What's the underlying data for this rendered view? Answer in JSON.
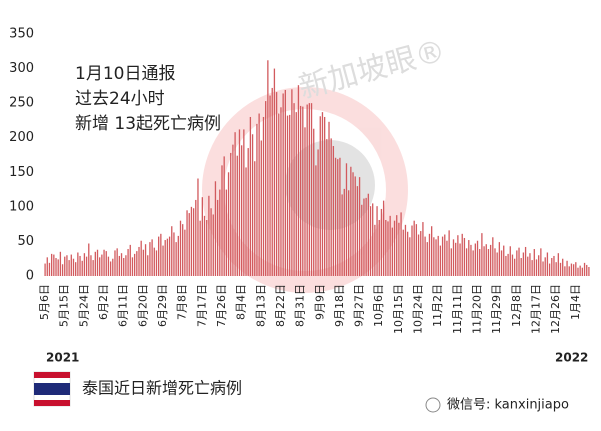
{
  "watermark": "新加坡眼®",
  "wechat": "微信号: kanxinjiapo",
  "chart_data": {
    "type": "bar",
    "color": "#d25a5e",
    "annotations": [
      "1月10日通报",
      "过去24小时",
      "新增 13起死亡病例"
    ],
    "year_labels": [
      "2021",
      "2022"
    ],
    "legend": "泰国近日新增死亡病例",
    "ylim": [
      0,
      350
    ],
    "yticks": [
      0,
      50,
      100,
      150,
      200,
      250,
      300,
      350
    ],
    "categories": [
      "5月6日",
      null,
      null,
      null,
      null,
      null,
      null,
      null,
      null,
      "5月15日",
      null,
      null,
      null,
      null,
      null,
      null,
      null,
      null,
      "5月24日",
      null,
      null,
      null,
      null,
      null,
      null,
      null,
      null,
      "6月2日",
      null,
      null,
      null,
      null,
      null,
      null,
      null,
      null,
      "6月11日",
      null,
      null,
      null,
      null,
      null,
      null,
      null,
      null,
      "6月20日",
      null,
      null,
      null,
      null,
      null,
      null,
      null,
      null,
      "6月29日",
      null,
      null,
      null,
      null,
      null,
      null,
      null,
      null,
      "7月8日",
      null,
      null,
      null,
      null,
      null,
      null,
      null,
      null,
      "7月17日",
      null,
      null,
      null,
      null,
      null,
      null,
      null,
      null,
      "7月26日",
      null,
      null,
      null,
      null,
      null,
      null,
      null,
      null,
      "8月4日",
      null,
      null,
      null,
      null,
      null,
      null,
      null,
      null,
      "8月13日",
      null,
      null,
      null,
      null,
      null,
      null,
      null,
      null,
      "8月22日",
      null,
      null,
      null,
      null,
      null,
      null,
      null,
      null,
      "8月31日",
      null,
      null,
      null,
      null,
      null,
      null,
      null,
      null,
      "9月9日",
      null,
      null,
      null,
      null,
      null,
      null,
      null,
      null,
      "9月18日",
      null,
      null,
      null,
      null,
      null,
      null,
      null,
      null,
      "9月27日",
      null,
      null,
      null,
      null,
      null,
      null,
      null,
      null,
      "10月6日",
      null,
      null,
      null,
      null,
      null,
      null,
      null,
      null,
      "10月15日",
      null,
      null,
      null,
      null,
      null,
      null,
      null,
      null,
      "10月24日",
      null,
      null,
      null,
      null,
      null,
      null,
      null,
      null,
      "11月2日",
      null,
      null,
      null,
      null,
      null,
      null,
      null,
      null,
      "11月11日",
      null,
      null,
      null,
      null,
      null,
      null,
      null,
      null,
      "11月20日",
      null,
      null,
      null,
      null,
      null,
      null,
      null,
      null,
      "11月29日",
      null,
      null,
      null,
      null,
      null,
      null,
      null,
      null,
      "12月8日",
      null,
      null,
      null,
      null,
      null,
      null,
      null,
      null,
      "12月17日",
      null,
      null,
      null,
      null,
      null,
      null,
      null,
      null,
      "12月26日",
      null,
      null,
      null,
      null,
      null,
      null,
      null,
      null,
      "1月4日",
      null,
      null,
      null,
      null,
      null,
      null
    ],
    "values": [
      18,
      27,
      19,
      32,
      31,
      26,
      24,
      35,
      17,
      28,
      30,
      23,
      31,
      25,
      20,
      34,
      29,
      22,
      33,
      28,
      47,
      30,
      23,
      35,
      38,
      27,
      31,
      38,
      36,
      28,
      21,
      25,
      37,
      40,
      29,
      33,
      26,
      30,
      39,
      45,
      27,
      32,
      36,
      42,
      51,
      38,
      46,
      30,
      49,
      53,
      41,
      37,
      57,
      61,
      44,
      52,
      54,
      57,
      72,
      63,
      49,
      58,
      80,
      75,
      67,
      95,
      91,
      100,
      98,
      110,
      141,
      80,
      114,
      87,
      81,
      116,
      98,
      89,
      137,
      110,
      125,
      160,
      173,
      125,
      150,
      178,
      190,
      208,
      174,
      212,
      189,
      212,
      157,
      185,
      230,
      205,
      166,
      220,
      235,
      196,
      230,
      253,
      312,
      261,
      272,
      300,
      266,
      235,
      244,
      264,
      269,
      232,
      233,
      270,
      250,
      237,
      276,
      246,
      245,
      215,
      248,
      250,
      250,
      213,
      160,
      183,
      231,
      237,
      230,
      198,
      223,
      199,
      188,
      171,
      169,
      171,
      118,
      126,
      163,
      124,
      158,
      150,
      144,
      130,
      143,
      103,
      112,
      113,
      119,
      101,
      105,
      74,
      101,
      81,
      97,
      109,
      81,
      79,
      87,
      70,
      80,
      88,
      77,
      92,
      67,
      74,
      64,
      56,
      73,
      80,
      75,
      60,
      65,
      78,
      57,
      49,
      61,
      72,
      56,
      53,
      58,
      44,
      57,
      60,
      51,
      66,
      40,
      53,
      48,
      59,
      47,
      61,
      55,
      40,
      52,
      45,
      37,
      47,
      51,
      39,
      62,
      43,
      46,
      39,
      45,
      56,
      40,
      34,
      49,
      37,
      44,
      29,
      32,
      43,
      31,
      25,
      37,
      41,
      26,
      34,
      42,
      28,
      33,
      23,
      39,
      24,
      30,
      40,
      21,
      27,
      34,
      18,
      26,
      29,
      20,
      33,
      19,
      25,
      14,
      22,
      14,
      18,
      17,
      20,
      12,
      15,
      12,
      19,
      16,
      13
    ]
  }
}
